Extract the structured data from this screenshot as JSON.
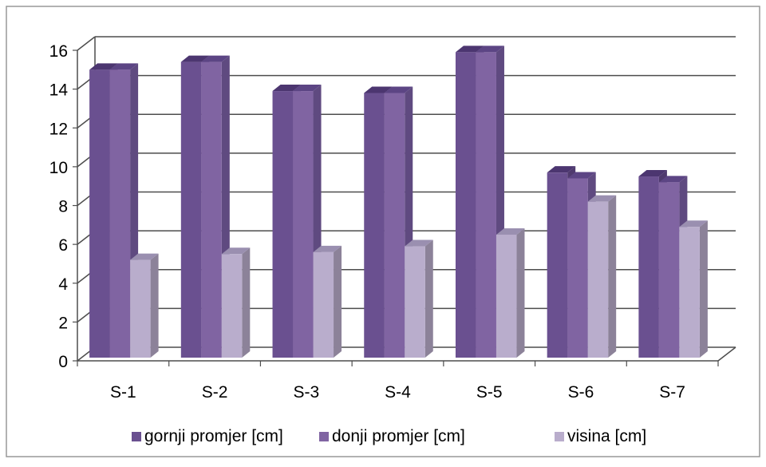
{
  "chart_data": {
    "type": "bar",
    "title": "",
    "xlabel": "",
    "ylabel": "",
    "categories": [
      "S-1",
      "S-2",
      "S-3",
      "S-4",
      "S-5",
      "S-6",
      "S-7"
    ],
    "series": [
      {
        "name": "gornji promjer [cm]",
        "values": [
          15.0,
          15.4,
          13.9,
          13.8,
          15.9,
          9.7,
          9.5
        ]
      },
      {
        "name": "donji promjer [cm]",
        "values": [
          15.0,
          15.4,
          13.9,
          13.8,
          15.9,
          9.4,
          9.2
        ]
      },
      {
        "name": "visina [cm]",
        "values": [
          5.2,
          5.5,
          5.6,
          5.9,
          6.5,
          8.2,
          6.9
        ]
      }
    ],
    "ylim": [
      0,
      16
    ],
    "yticks": [
      "0",
      "2",
      "4",
      "6",
      "8",
      "10",
      "12",
      "14",
      "16"
    ],
    "grid": true,
    "legend_position": "bottom",
    "style": "3d-clustered-column",
    "colors": {
      "series": [
        "#6a5090",
        "#8064a2",
        "#b9adcc"
      ],
      "series_side": [
        "#4f3a6e",
        "#5f4a80",
        "#8c8299"
      ],
      "series_top": [
        "#4c3670",
        "#5c4584",
        "#9a8fb0"
      ],
      "gridline": "#4d4d4d",
      "frame": "#999999"
    }
  }
}
